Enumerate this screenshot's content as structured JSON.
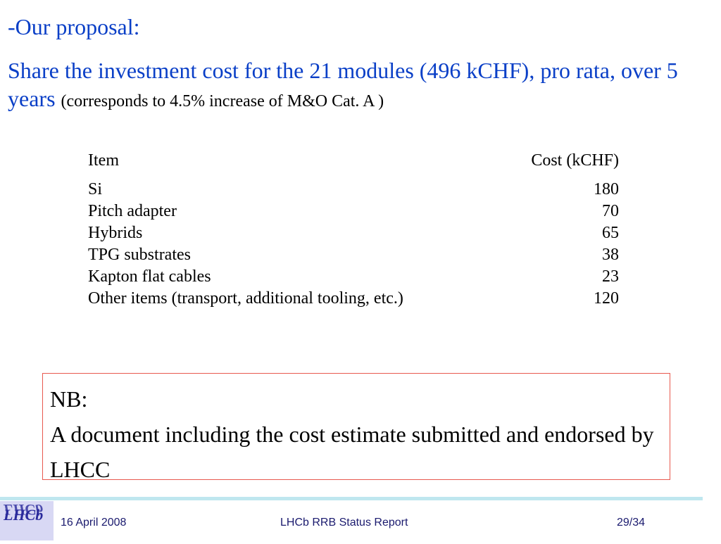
{
  "slide": {
    "heading": "-Our proposal:",
    "lead_main": "Share the investment cost for the 21 modules (496 kCHF), pro rata, over 5 years",
    "lead_note": "(corresponds to 4.5% increase of M&O Cat. A )"
  },
  "table": {
    "header": {
      "item": "Item",
      "cost": "Cost (kCHF)"
    },
    "rows": [
      {
        "item": "Si",
        "cost": "180"
      },
      {
        "item": "Pitch adapter",
        "cost": "70"
      },
      {
        "item": "Hybrids",
        "cost": "65"
      },
      {
        "item": "TPG substrates",
        "cost": "38"
      },
      {
        "item": "Kapton flat cables",
        "cost": "23"
      },
      {
        "item": "Other items (transport, additional tooling, etc.)",
        "cost": "120"
      }
    ]
  },
  "note": {
    "label": "NB:",
    "text": "A document including the cost estimate submitted and endorsed by LHCC"
  },
  "footer": {
    "date": "16 April 2008",
    "title": "LHCb RRB Status Report",
    "page": "29/34",
    "logo_text": "LHCb"
  },
  "colors": {
    "heading": "#0a3fc7",
    "note_border": "#e8594f",
    "footer_rule": "#bfe7ef",
    "footer_text": "#1a1a6e"
  }
}
